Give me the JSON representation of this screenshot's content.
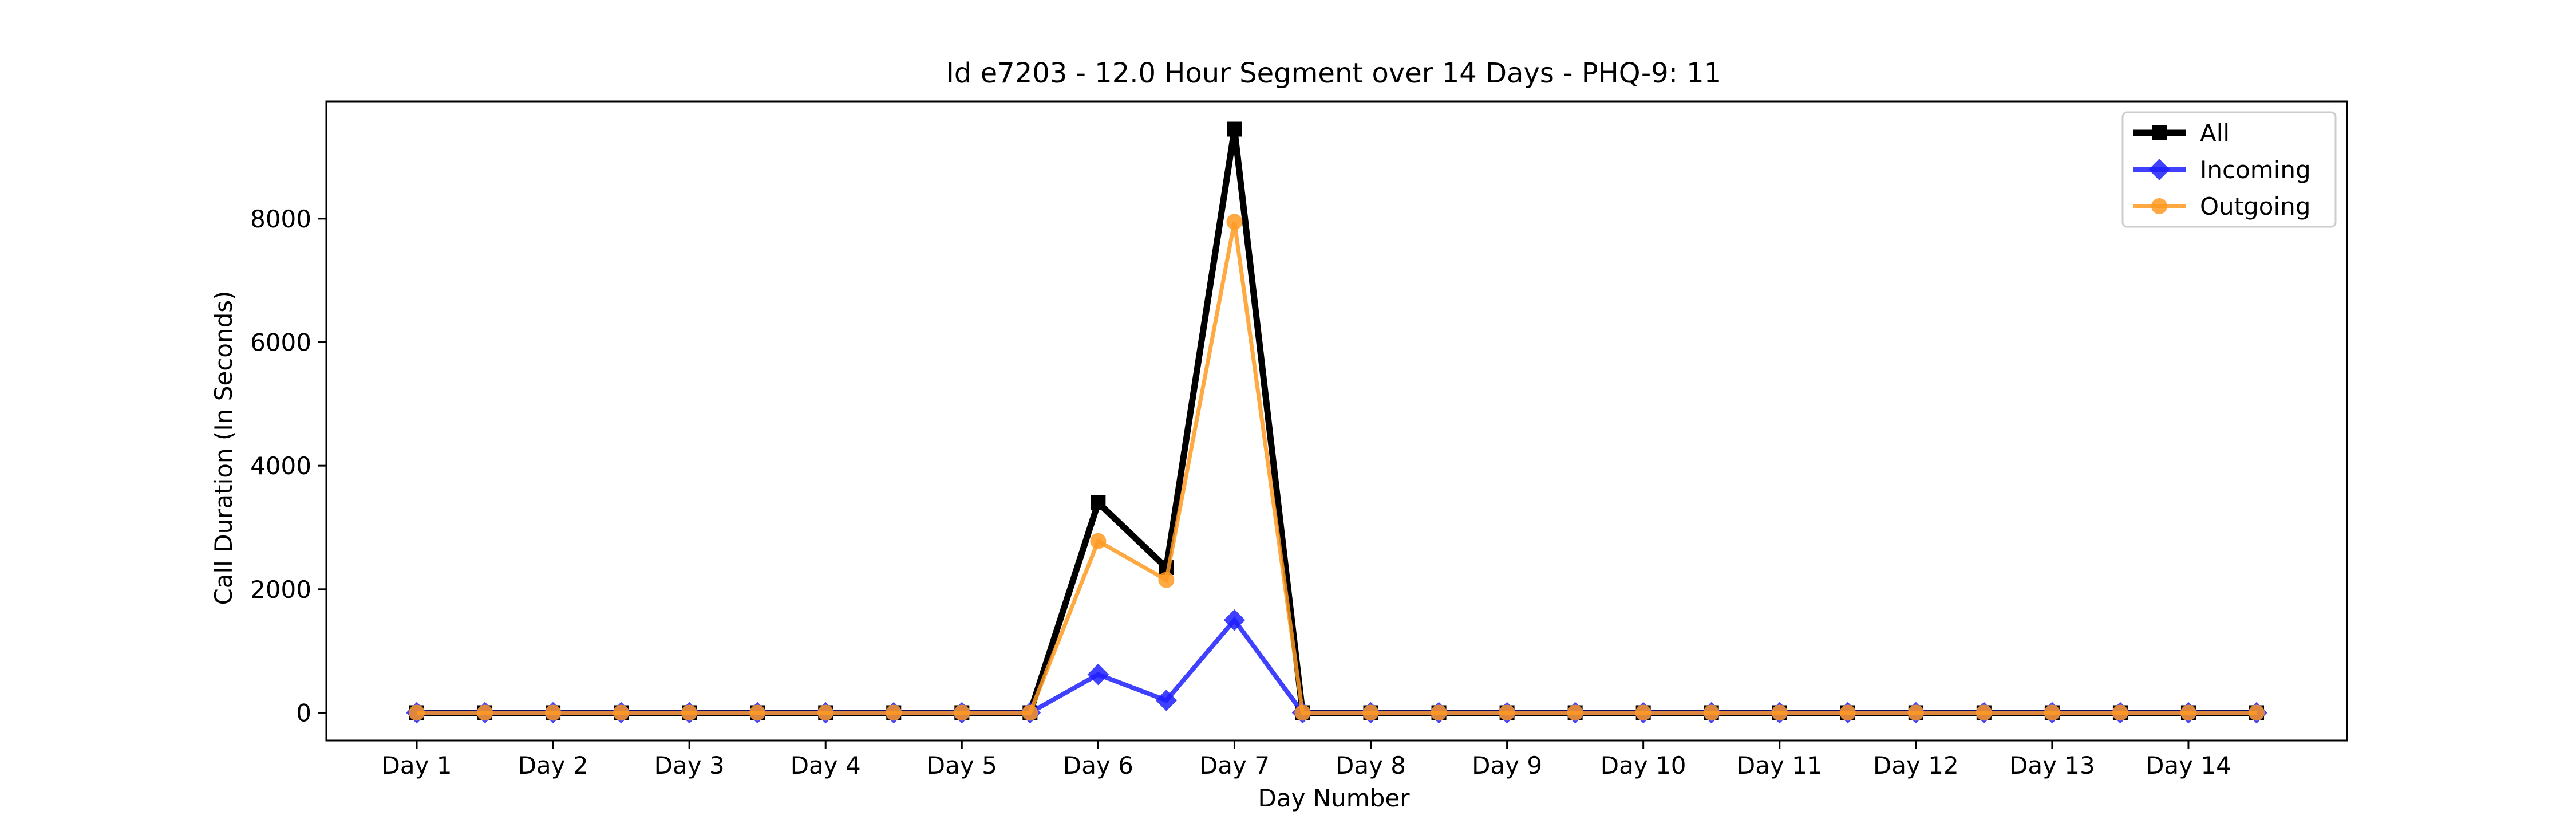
{
  "chart_data": {
    "type": "line",
    "title": "Id e7203 - 12.0 Hour Segment over 14 Days - PHQ-9: 11",
    "xlabel": "Day Number",
    "ylabel": "Call Duration (In Seconds)",
    "x_tick_labels": [
      "Day 1",
      "Day 2",
      "Day 3",
      "Day 4",
      "Day 5",
      "Day 6",
      "Day 7",
      "Day 8",
      "Day 9",
      "Day 10",
      "Day 11",
      "Day 12",
      "Day 13",
      "Day 14"
    ],
    "y_ticks": [
      0,
      2000,
      4000,
      6000,
      8000
    ],
    "ylim": [
      -450,
      9900
    ],
    "legend_position": "top-right",
    "grid": false,
    "series": [
      {
        "name": "All",
        "color": "#000000",
        "marker": "square",
        "values": [
          0,
          0,
          0,
          0,
          0,
          0,
          0,
          0,
          0,
          0,
          3400,
          2350,
          9450,
          0,
          0,
          0,
          0,
          0,
          0,
          0,
          0,
          0,
          0,
          0,
          0,
          0,
          0,
          0
        ]
      },
      {
        "name": "Incoming",
        "color": "#1f1fff",
        "marker": "diamond",
        "values": [
          0,
          0,
          0,
          0,
          0,
          0,
          0,
          0,
          0,
          0,
          620,
          200,
          1500,
          0,
          0,
          0,
          0,
          0,
          0,
          0,
          0,
          0,
          0,
          0,
          0,
          0,
          0,
          0
        ]
      },
      {
        "name": "Outgoing",
        "color": "#ff9a22",
        "marker": "circle",
        "values": [
          0,
          0,
          0,
          0,
          0,
          0,
          0,
          0,
          0,
          0,
          2780,
          2150,
          7950,
          0,
          0,
          0,
          0,
          0,
          0,
          0,
          0,
          0,
          0,
          0,
          0,
          0,
          0,
          0
        ]
      }
    ]
  }
}
